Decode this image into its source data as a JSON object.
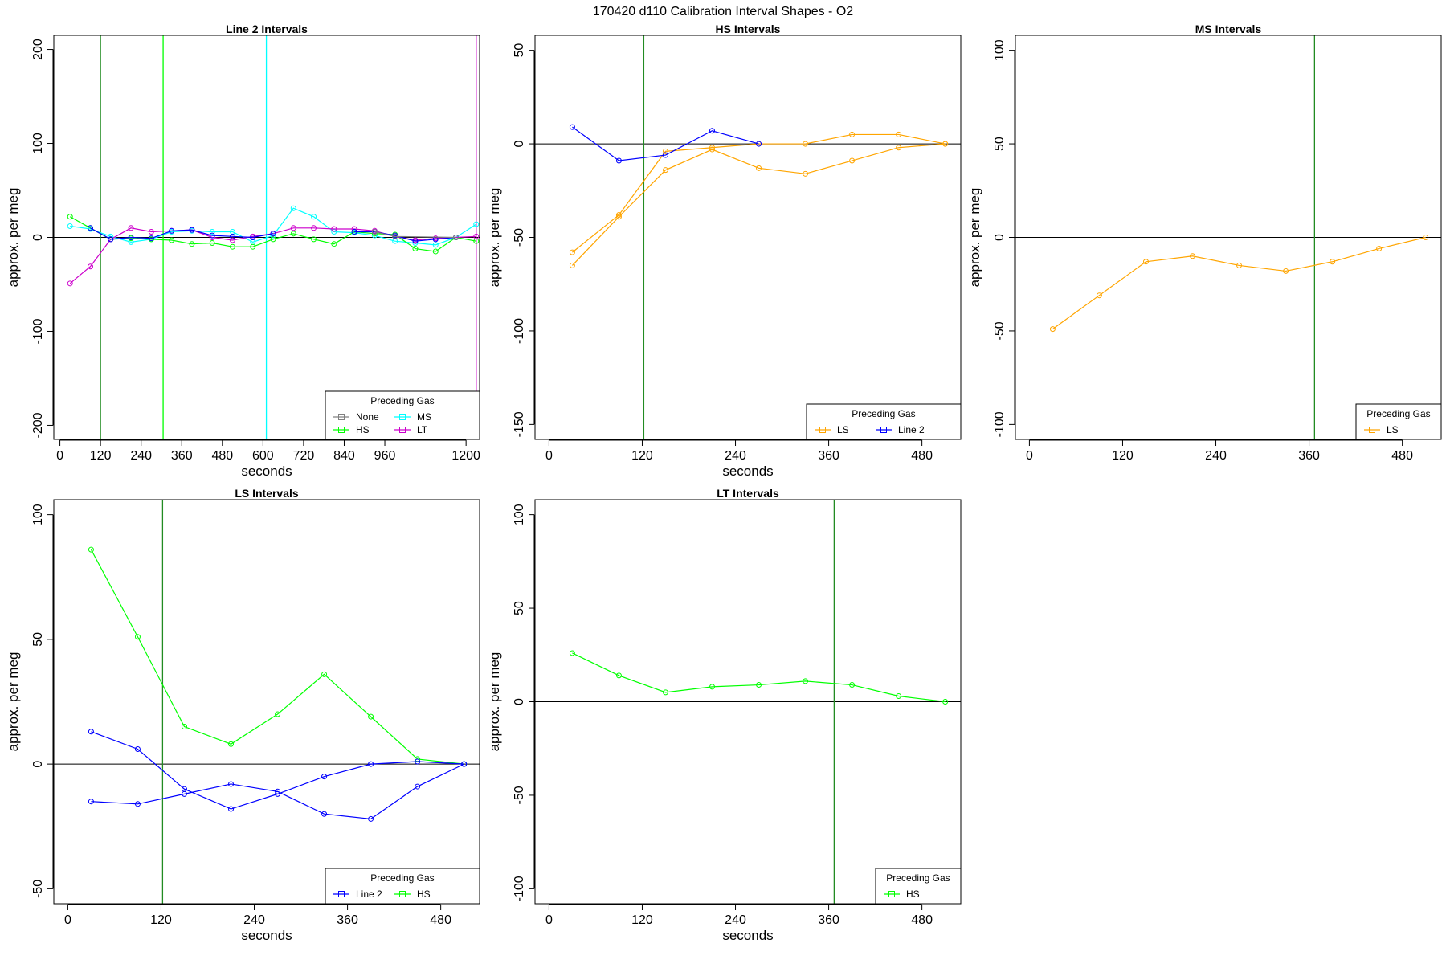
{
  "figure_title": "170420   d110   Calibration Interval Shapes - O2",
  "chart_data": [
    {
      "type": "line",
      "title": "Line 2 Intervals",
      "xlabel": "seconds",
      "ylabel": "approx. per meg",
      "xlim": [
        -18,
        1240
      ],
      "ylim": [
        -215,
        215
      ],
      "xticks": [
        0,
        120,
        240,
        360,
        480,
        600,
        720,
        840,
        960,
        1200
      ],
      "xtick_labels": [
        "0",
        "120",
        "240",
        "360",
        "480",
        "600",
        "720",
        "840",
        "960",
        "1200"
      ],
      "yticks": [
        -200,
        -100,
        0,
        100,
        200
      ],
      "ytick_labels": [
        "-200",
        "-100",
        "0",
        "100",
        "200"
      ],
      "hline": 0,
      "vlines": [
        {
          "x": 120,
          "color": "#228B22"
        },
        {
          "x": 305,
          "color": "#00FF00"
        },
        {
          "x": 610,
          "color": "#00FFFF"
        },
        {
          "x": 1230,
          "color": "#CC00CC"
        }
      ],
      "legend": {
        "title": "Preceding Gas",
        "position": "bottom-right",
        "columns": 2,
        "entries": [
          {
            "label": "None",
            "color": "#808080"
          },
          {
            "label": "MS",
            "color": "#00FFFF"
          },
          {
            "label": "HS",
            "color": "#00FF00"
          },
          {
            "label": "LT",
            "color": "#CC00CC"
          }
        ]
      },
      "series": [
        {
          "color": "#00FFFF",
          "x": [
            30,
            90,
            150,
            210,
            270,
            330,
            390,
            450,
            510,
            570,
            630,
            690,
            750,
            810,
            870,
            930,
            990,
            1050,
            1110,
            1170,
            1230
          ],
          "y": [
            12,
            9,
            1,
            -5,
            -2,
            6,
            7,
            6,
            6,
            -5,
            2,
            31,
            22,
            6,
            5,
            2,
            -4,
            -6,
            -8,
            0,
            14
          ]
        },
        {
          "color": "#00FF00",
          "x": [
            30,
            90,
            150,
            210,
            270,
            330,
            390,
            450,
            510,
            570,
            630,
            690,
            750,
            810,
            870,
            930,
            990,
            1050,
            1110,
            1170,
            1230
          ],
          "y": [
            22,
            10,
            -2,
            -1,
            -2,
            -3,
            -7,
            -6,
            -10,
            -10,
            -2,
            4,
            -2,
            -7,
            6,
            4,
            3,
            -12,
            -15,
            0,
            -4
          ]
        },
        {
          "color": "#CC00CC",
          "x": [
            30,
            90,
            150,
            210,
            270,
            330,
            390,
            450,
            510,
            570,
            630,
            690,
            750,
            810,
            870,
            930,
            990,
            1050,
            1110,
            1170,
            1230
          ],
          "y": [
            -49,
            -31,
            -2,
            10,
            6,
            7,
            8,
            0,
            -3,
            1,
            4,
            10,
            10,
            9,
            9,
            7,
            1,
            -3,
            -1,
            0,
            1
          ]
        },
        {
          "color": "#0000FF",
          "x": [
            30,
            90,
            150,
            210,
            270,
            330,
            390,
            450,
            510,
            570,
            630,
            690,
            750,
            810,
            870,
            930,
            990,
            1050,
            1110,
            1170,
            1230
          ],
          "y": [
            null,
            10,
            -2,
            0,
            -1,
            7,
            8,
            2,
            1,
            0,
            4,
            null,
            null,
            null,
            6,
            6,
            2,
            -4,
            -2,
            0,
            null
          ]
        },
        {
          "color": "#808080",
          "x": [
            930,
            990,
            1170
          ],
          "y": [
            6,
            1,
            0
          ]
        }
      ]
    },
    {
      "type": "line",
      "title": "HS Intervals",
      "xlabel": "seconds",
      "ylabel": "approx. per meg",
      "xlim": [
        -18,
        530
      ],
      "ylim": [
        -158,
        58
      ],
      "xticks": [
        0,
        120,
        240,
        360,
        480
      ],
      "xtick_labels": [
        "0",
        "120",
        "240",
        "360",
        "480"
      ],
      "yticks": [
        -150,
        -100,
        -50,
        0,
        50
      ],
      "ytick_labels": [
        "-150",
        "-100",
        "-50",
        "0",
        "50"
      ],
      "hline": 0,
      "vlines": [
        {
          "x": 122,
          "color": "#228B22"
        }
      ],
      "legend": {
        "title": "Preceding Gas",
        "position": "bottom-right",
        "columns": 2,
        "entries": [
          {
            "label": "LS",
            "color": "#FFA500"
          },
          {
            "label": "Line 2",
            "color": "#0000FF"
          }
        ]
      },
      "series": [
        {
          "color": "#FFA500",
          "x": [
            30,
            90,
            150,
            210,
            270,
            330,
            390,
            450,
            510
          ],
          "y": [
            -65,
            -39,
            -14,
            -3,
            -13,
            -16,
            -9,
            -2,
            0
          ]
        },
        {
          "color": "#FFA500",
          "x": [
            30,
            90,
            150,
            210,
            270,
            330,
            390,
            450,
            510
          ],
          "y": [
            -58,
            -38,
            -4,
            -2,
            0,
            0,
            5,
            5,
            0
          ]
        },
        {
          "color": "#0000FF",
          "x": [
            30,
            90,
            150,
            210,
            270
          ],
          "y": [
            9,
            -9,
            -6,
            7,
            0
          ]
        }
      ]
    },
    {
      "type": "line",
      "title": "MS Intervals",
      "xlabel": "",
      "ylabel": "approx. per meg",
      "xlim": [
        -18,
        530
      ],
      "ylim": [
        -108,
        108
      ],
      "xticks": [
        0,
        120,
        240,
        360,
        480
      ],
      "xtick_labels": [
        "0",
        "120",
        "240",
        "360",
        "480"
      ],
      "yticks": [
        -100,
        -50,
        0,
        50,
        100
      ],
      "ytick_labels": [
        "-100",
        "-50",
        "0",
        "50",
        "100"
      ],
      "hline": 0,
      "vlines": [
        {
          "x": 367,
          "color": "#228B22"
        }
      ],
      "legend": {
        "title": "Preceding Gas",
        "position": "bottom-right",
        "columns": 1,
        "entries": [
          {
            "label": "LS",
            "color": "#FFA500"
          }
        ]
      },
      "series": [
        {
          "color": "#FFA500",
          "x": [
            30,
            90,
            150,
            210,
            270,
            330,
            390,
            450,
            510
          ],
          "y": [
            -49,
            -31,
            -13,
            -10,
            -15,
            -18,
            -13,
            -6,
            0
          ]
        }
      ]
    },
    {
      "type": "line",
      "title": "LS Intervals",
      "xlabel": "seconds",
      "ylabel": "approx. per meg",
      "xlim": [
        -18,
        530
      ],
      "ylim": [
        -56,
        106
      ],
      "xticks": [
        0,
        120,
        240,
        360,
        480
      ],
      "xtick_labels": [
        "0",
        "120",
        "240",
        "360",
        "480"
      ],
      "yticks": [
        -50,
        0,
        50,
        100
      ],
      "ytick_labels": [
        "-50",
        "0",
        "50",
        "100"
      ],
      "hline": 0,
      "vlines": [
        {
          "x": 122,
          "color": "#228B22"
        }
      ],
      "legend": {
        "title": "Preceding Gas",
        "position": "bottom-right",
        "columns": 2,
        "entries": [
          {
            "label": "Line 2",
            "color": "#0000FF"
          },
          {
            "label": "HS",
            "color": "#00FF00"
          }
        ]
      },
      "series": [
        {
          "color": "#00FF00",
          "x": [
            30,
            90,
            150,
            210,
            270,
            330,
            390,
            450,
            510
          ],
          "y": [
            86,
            51,
            15,
            8,
            20,
            36,
            19,
            2,
            0
          ]
        },
        {
          "color": "#0000FF",
          "x": [
            30,
            90,
            150,
            210,
            270,
            330,
            390,
            450,
            510
          ],
          "y": [
            13,
            6,
            -10,
            -18,
            -12,
            -5,
            0,
            1,
            0
          ]
        },
        {
          "color": "#0000FF",
          "x": [
            30,
            90,
            150,
            210,
            270,
            330,
            390,
            450,
            510
          ],
          "y": [
            -15,
            -16,
            -12,
            -8,
            -11,
            -20,
            -22,
            -9,
            0
          ]
        }
      ]
    },
    {
      "type": "line",
      "title": "LT Intervals",
      "xlabel": "seconds",
      "ylabel": "approx. per meg",
      "xlim": [
        -18,
        530
      ],
      "ylim": [
        -108,
        108
      ],
      "xticks": [
        0,
        120,
        240,
        360,
        480
      ],
      "xtick_labels": [
        "0",
        "120",
        "240",
        "360",
        "480"
      ],
      "yticks": [
        -100,
        -50,
        0,
        50,
        100
      ],
      "ytick_labels": [
        "-100",
        "-50",
        "0",
        "50",
        "100"
      ],
      "hline": 0,
      "vlines": [
        {
          "x": 367,
          "color": "#228B22"
        }
      ],
      "legend": {
        "title": "Preceding Gas",
        "position": "bottom-right",
        "columns": 1,
        "entries": [
          {
            "label": "HS",
            "color": "#00FF00"
          }
        ]
      },
      "series": [
        {
          "color": "#00FF00",
          "x": [
            30,
            90,
            150,
            210,
            270,
            330,
            390,
            450,
            510
          ],
          "y": [
            26,
            14,
            5,
            8,
            9,
            11,
            9,
            3,
            0
          ]
        }
      ]
    }
  ]
}
